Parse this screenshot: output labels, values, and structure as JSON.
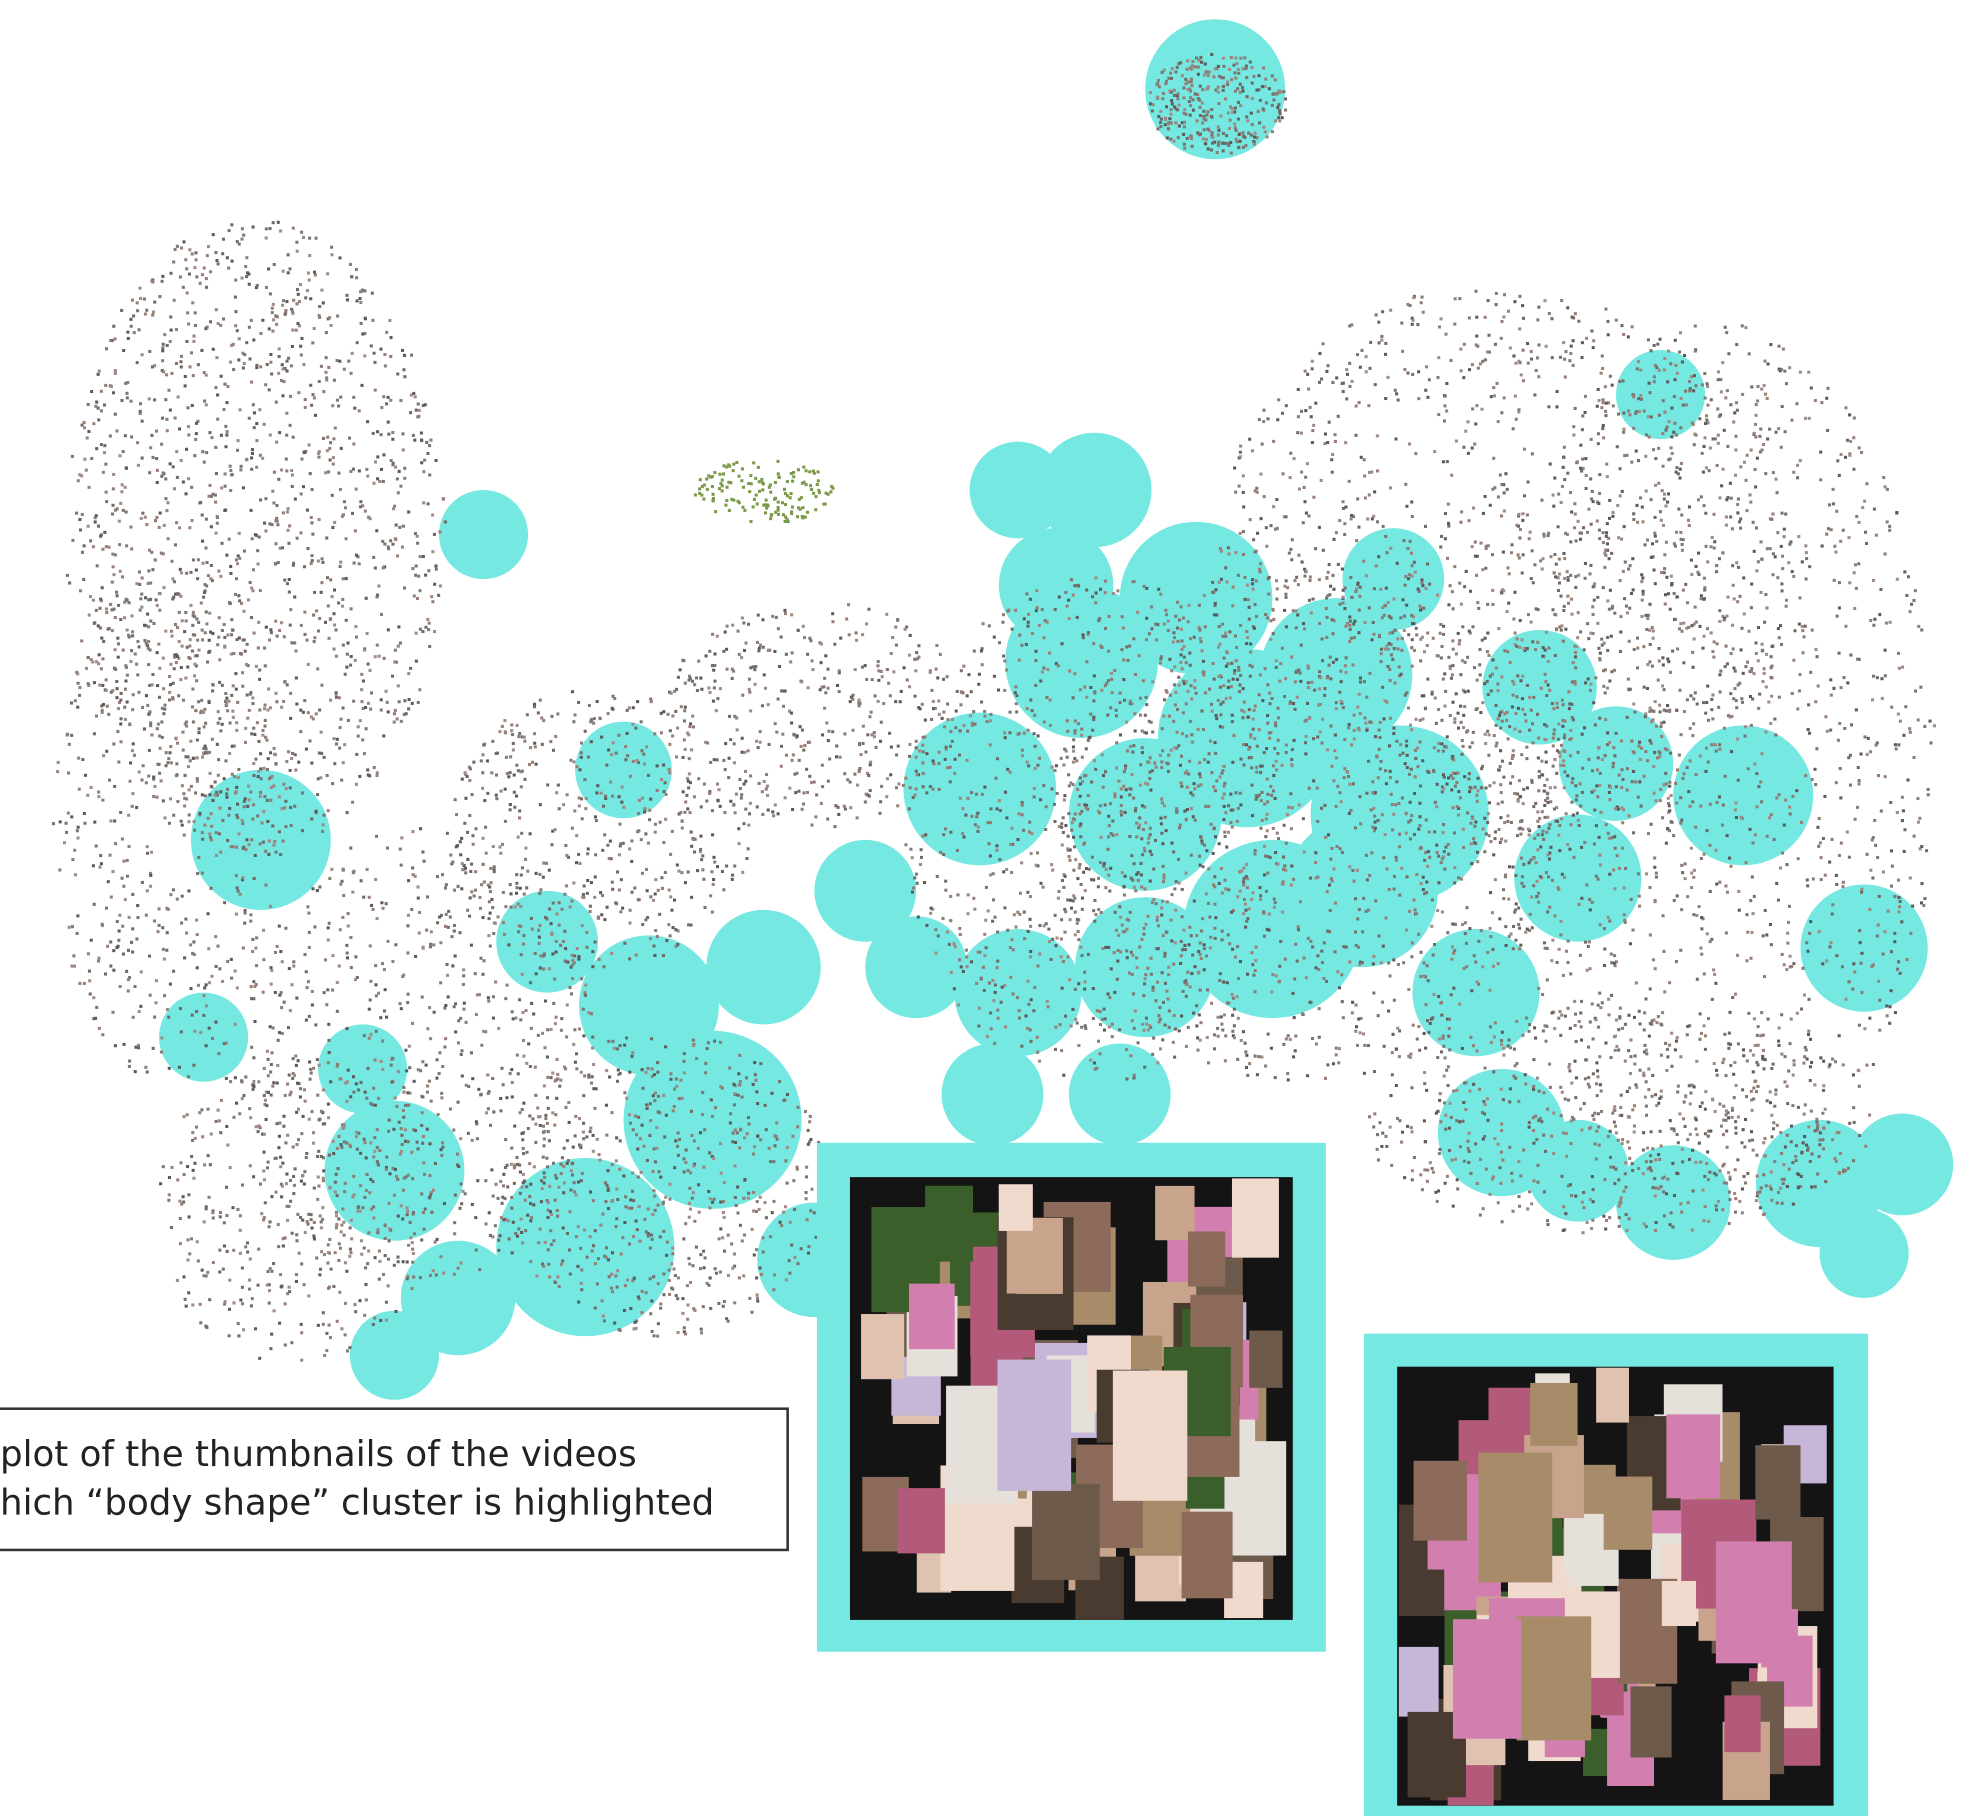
{
  "caption": {
    "lines": [
      "plot of the thumbnails of the videos",
      "hich “body shape” cluster is highlighted"
    ]
  }
}
